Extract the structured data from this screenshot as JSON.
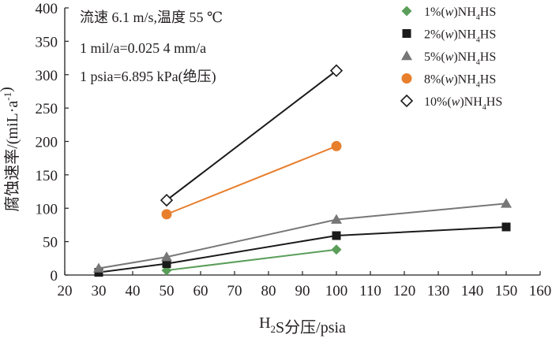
{
  "chart_data": {
    "type": "line",
    "xlabel": "H₂S分压/psia",
    "ylabel": "腐蚀速率/(miL·a⁻¹)",
    "xlim": [
      20,
      160
    ],
    "ylim": [
      0,
      400
    ],
    "xticks": [
      "20",
      "30",
      "40",
      "50",
      "60",
      "70",
      "80",
      "90",
      "100",
      "110",
      "120",
      "130",
      "140",
      "150",
      "160"
    ],
    "yticks": [
      "0",
      "50",
      "100",
      "150",
      "200",
      "250",
      "300",
      "350",
      "400"
    ],
    "grid": false,
    "legend_position": "top-right",
    "annotations": [
      "流速 6.1 m/s,温度 55 ℃",
      "1 mil/a=0.025 4 mm/a",
      "1 psia=6.895 kPa(绝压)"
    ],
    "series": [
      {
        "name": "1%(w)NH4HS",
        "marker": "diamond",
        "color": "#5a9e5a",
        "x": [
          50,
          100
        ],
        "y": [
          7,
          38
        ]
      },
      {
        "name": "2%(w)NH4HS",
        "marker": "square",
        "color": "#1a1a1a",
        "x": [
          30,
          50,
          100,
          150
        ],
        "y": [
          4,
          17,
          59,
          72
        ]
      },
      {
        "name": "5%(w)NH4HS",
        "marker": "triangle",
        "color": "#777777",
        "x": [
          30,
          50,
          100,
          150
        ],
        "y": [
          10,
          27,
          83,
          107
        ]
      },
      {
        "name": "8%(w)NH4HS",
        "marker": "circle",
        "color": "#e87f2d",
        "x": [
          50,
          100
        ],
        "y": [
          91,
          193
        ]
      },
      {
        "name": "10%(w)NH4HS",
        "marker": "open-diamond",
        "color": "#1a1a1a",
        "x": [
          50,
          100
        ],
        "y": [
          112,
          306
        ]
      }
    ]
  }
}
